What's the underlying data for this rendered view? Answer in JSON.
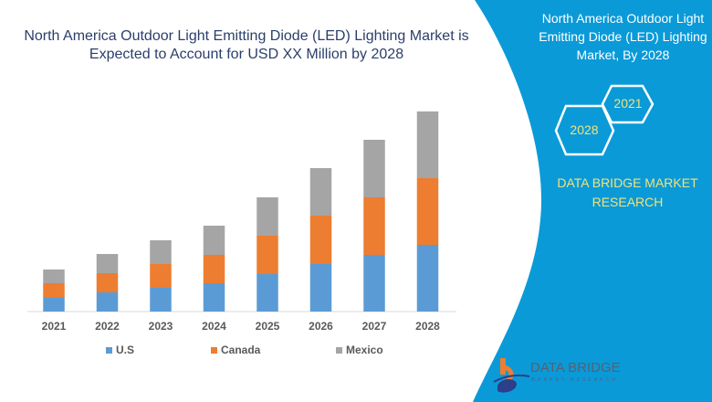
{
  "chart_data": {
    "type": "bar",
    "stacked": true,
    "title": "North America Outdoor Light Emitting Diode (LED) Lighting Market is Expected to Account for USD XX Million by 2028",
    "xlabel": "",
    "ylabel": "",
    "categories": [
      "2021",
      "2022",
      "2023",
      "2024",
      "2025",
      "2026",
      "2027",
      "2028"
    ],
    "series": [
      {
        "name": "U.S",
        "color": "#5b9bd5",
        "values": [
          15,
          21,
          26,
          31,
          41,
          52,
          62,
          73
        ]
      },
      {
        "name": "Canada",
        "color": "#ed7d31",
        "values": [
          16,
          21,
          26,
          31,
          42,
          53,
          63,
          73
        ]
      },
      {
        "name": "Mexico",
        "color": "#a5a5a5",
        "values": [
          15,
          21,
          26,
          32,
          42,
          52,
          63,
          73
        ]
      }
    ],
    "ylim": [
      0,
      230
    ],
    "y_axis_shown": false,
    "grid": false,
    "legend_position": "bottom"
  },
  "side_panel": {
    "title": "North America Outdoor Light Emitting Diode (LED) Lighting Market, By 2028",
    "hex_years": [
      "2021",
      "2028"
    ],
    "brand_line1": "DATA BRIDGE MARKET",
    "brand_line2": "RESEARCH",
    "color": "#0a9ad8",
    "accent_text_color": "#f2e27a"
  },
  "logo": {
    "name": "DATA BRIDGE",
    "tagline": "MARKET RESEARCH"
  }
}
